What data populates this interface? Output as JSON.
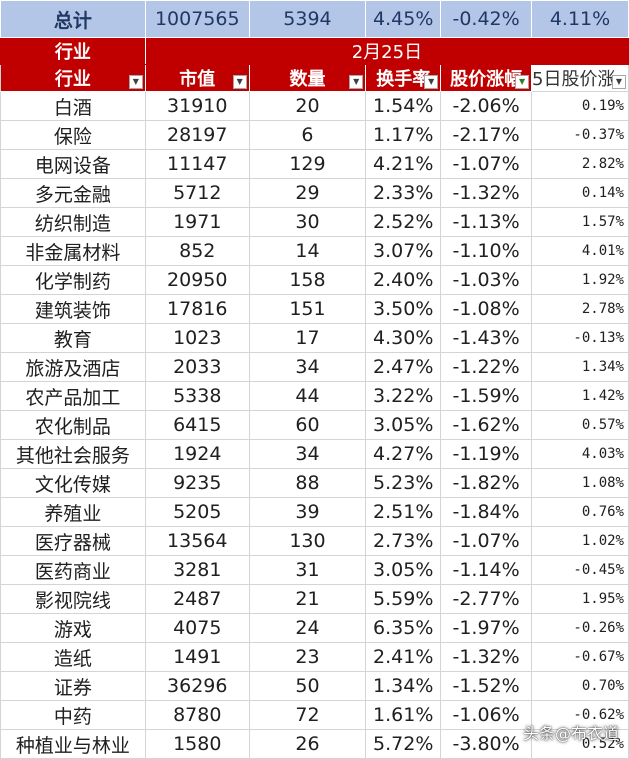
{
  "totals": [
    "总计",
    "1007565",
    "5394",
    "4.45%",
    "-0.42%",
    "4.11%"
  ],
  "date_row": {
    "label": "行业",
    "date": "2月25日"
  },
  "headers": [
    "行业",
    "市值",
    "数量",
    "换手率",
    "股价涨幅",
    "5日股价涨"
  ],
  "rows": [
    [
      "白酒",
      "31910",
      "20",
      "1.54%",
      "-2.06%",
      "0.19%"
    ],
    [
      "保险",
      "28197",
      "6",
      "1.17%",
      "-2.17%",
      "-0.37%"
    ],
    [
      "电网设备",
      "11147",
      "129",
      "4.21%",
      "-1.07%",
      "2.82%"
    ],
    [
      "多元金融",
      "5712",
      "29",
      "2.33%",
      "-1.32%",
      "0.14%"
    ],
    [
      "纺织制造",
      "1971",
      "30",
      "2.52%",
      "-1.13%",
      "1.57%"
    ],
    [
      "非金属材料",
      "852",
      "14",
      "3.07%",
      "-1.10%",
      "4.01%"
    ],
    [
      "化学制药",
      "20950",
      "158",
      "2.40%",
      "-1.03%",
      "1.92%"
    ],
    [
      "建筑装饰",
      "17816",
      "151",
      "3.50%",
      "-1.08%",
      "2.78%"
    ],
    [
      "教育",
      "1023",
      "17",
      "4.30%",
      "-1.43%",
      "-0.13%"
    ],
    [
      "旅游及酒店",
      "2033",
      "34",
      "2.47%",
      "-1.22%",
      "1.34%"
    ],
    [
      "农产品加工",
      "5338",
      "44",
      "3.22%",
      "-1.59%",
      "1.42%"
    ],
    [
      "农化制品",
      "6415",
      "60",
      "3.05%",
      "-1.62%",
      "0.57%"
    ],
    [
      "其他社会服务",
      "1924",
      "34",
      "4.27%",
      "-1.19%",
      "4.03%"
    ],
    [
      "文化传媒",
      "9235",
      "88",
      "5.23%",
      "-1.82%",
      "1.08%"
    ],
    [
      "养殖业",
      "5205",
      "39",
      "2.51%",
      "-1.84%",
      "0.76%"
    ],
    [
      "医疗器械",
      "13564",
      "130",
      "2.73%",
      "-1.07%",
      "1.02%"
    ],
    [
      "医药商业",
      "3281",
      "31",
      "3.05%",
      "-1.14%",
      "-0.45%"
    ],
    [
      "影视院线",
      "2487",
      "21",
      "5.59%",
      "-2.77%",
      "1.95%"
    ],
    [
      "游戏",
      "4075",
      "24",
      "6.35%",
      "-1.97%",
      "-0.26%"
    ],
    [
      "造纸",
      "1491",
      "23",
      "2.41%",
      "-1.32%",
      "-0.67%"
    ],
    [
      "证券",
      "36296",
      "50",
      "1.34%",
      "-1.52%",
      "0.70%"
    ],
    [
      "中药",
      "8780",
      "72",
      "1.61%",
      "-1.06%",
      "-0.62%"
    ],
    [
      "种植业与林业",
      "1580",
      "26",
      "5.72%",
      "-3.80%",
      "0.52%"
    ]
  ],
  "watermark": "头条@布衣道",
  "colors": {
    "total_bg": "#b4c6e7",
    "header_bg": "#c00000"
  }
}
